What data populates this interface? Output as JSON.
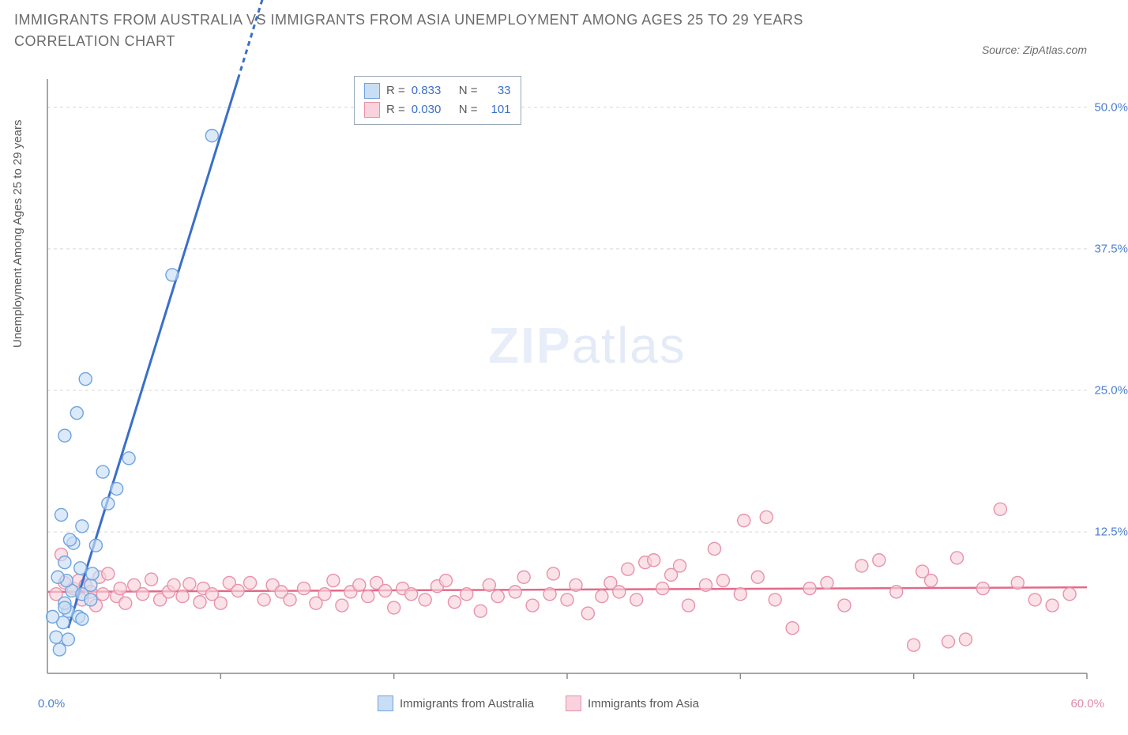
{
  "title": "IMMIGRANTS FROM AUSTRALIA VS IMMIGRANTS FROM ASIA UNEMPLOYMENT AMONG AGES 25 TO 29 YEARS CORRELATION CHART",
  "source": "Source: ZipAtlas.com",
  "y_axis_label": "Unemployment Among Ages 25 to 29 years",
  "watermark": {
    "bold": "ZIP",
    "light": "atlas"
  },
  "chart": {
    "type": "scatter",
    "background_color": "#ffffff",
    "grid_color": "#d7d7d7",
    "axis_color": "#8a8a8a",
    "tick_font_size": 15,
    "y_tick_color": "#4b7fd1",
    "x_left_tick_color": "#4b7fd1",
    "x_right_tick_color": "#e28aa3",
    "xlim": [
      0,
      60
    ],
    "ylim": [
      0,
      52.5
    ],
    "y_ticks": [
      12.5,
      25.0,
      37.5,
      50.0
    ],
    "y_tick_labels": [
      "12.5%",
      "25.0%",
      "37.5%",
      "50.0%"
    ],
    "x_major_ticks": [
      0,
      10,
      20,
      30,
      40,
      50,
      60
    ],
    "x_left_label": "0.0%",
    "x_right_label": "60.0%",
    "marker_radius": 8,
    "marker_stroke_width": 1.4,
    "trend_line_width_a": 3,
    "trend_line_width_b": 2.5,
    "series": [
      {
        "name": "Immigrants from Australia",
        "fill": "#c9ddf4",
        "stroke": "#6ea3df",
        "line_color": "#3a6fc9",
        "R": "0.833",
        "N": "33",
        "trend": {
          "x1": 1.2,
          "y1": 4.0,
          "x2": 11.0,
          "y2": 52.5,
          "dashed_ext_to": [
            12.5,
            60
          ]
        },
        "points": [
          [
            0.5,
            3.2
          ],
          [
            0.7,
            2.1
          ],
          [
            1.2,
            3.0
          ],
          [
            0.9,
            4.5
          ],
          [
            1.2,
            5.5
          ],
          [
            1.8,
            5.0
          ],
          [
            1.0,
            6.2
          ],
          [
            1.4,
            7.3
          ],
          [
            2.0,
            7.0
          ],
          [
            2.5,
            7.8
          ],
          [
            1.1,
            8.2
          ],
          [
            0.6,
            8.5
          ],
          [
            1.0,
            9.8
          ],
          [
            1.5,
            11.5
          ],
          [
            1.3,
            11.8
          ],
          [
            2.8,
            11.3
          ],
          [
            2.0,
            13.0
          ],
          [
            0.8,
            14.0
          ],
          [
            3.5,
            15.0
          ],
          [
            4.0,
            16.3
          ],
          [
            3.2,
            17.8
          ],
          [
            4.7,
            19.0
          ],
          [
            1.0,
            21.0
          ],
          [
            1.7,
            23.0
          ],
          [
            2.2,
            26.0
          ],
          [
            7.2,
            35.2
          ],
          [
            9.5,
            47.5
          ],
          [
            0.3,
            5.0
          ],
          [
            2.0,
            4.8
          ],
          [
            1.0,
            5.8
          ],
          [
            2.5,
            6.5
          ],
          [
            2.6,
            8.8
          ],
          [
            1.9,
            9.3
          ]
        ]
      },
      {
        "name": "Immigrants from Asia",
        "fill": "#f8d2dc",
        "stroke": "#e892a9",
        "line_color": "#e26a8c",
        "R": "0.030",
        "N": "101",
        "trend": {
          "x1": 0,
          "y1": 7.2,
          "x2": 60,
          "y2": 7.6
        },
        "points": [
          [
            0.8,
            10.5
          ],
          [
            1.0,
            8.0
          ],
          [
            1.5,
            7.5
          ],
          [
            1.8,
            8.2
          ],
          [
            2.0,
            6.5
          ],
          [
            2.2,
            7.8
          ],
          [
            2.5,
            7.2
          ],
          [
            2.8,
            6.0
          ],
          [
            3.0,
            8.5
          ],
          [
            3.2,
            7.0
          ],
          [
            3.5,
            8.8
          ],
          [
            4.0,
            6.8
          ],
          [
            4.2,
            7.5
          ],
          [
            4.5,
            6.2
          ],
          [
            5.0,
            7.8
          ],
          [
            5.5,
            7.0
          ],
          [
            6.0,
            8.3
          ],
          [
            6.5,
            6.5
          ],
          [
            7.0,
            7.2
          ],
          [
            7.3,
            7.8
          ],
          [
            7.8,
            6.8
          ],
          [
            8.2,
            7.9
          ],
          [
            8.8,
            6.3
          ],
          [
            9.0,
            7.5
          ],
          [
            9.5,
            7.0
          ],
          [
            10.0,
            6.2
          ],
          [
            10.5,
            8.0
          ],
          [
            11.0,
            7.3
          ],
          [
            11.7,
            8.0
          ],
          [
            12.5,
            6.5
          ],
          [
            13.0,
            7.8
          ],
          [
            13.5,
            7.2
          ],
          [
            14.0,
            6.5
          ],
          [
            14.8,
            7.5
          ],
          [
            15.5,
            6.2
          ],
          [
            16.0,
            7.0
          ],
          [
            16.5,
            8.2
          ],
          [
            17.0,
            6.0
          ],
          [
            17.5,
            7.2
          ],
          [
            18.0,
            7.8
          ],
          [
            18.5,
            6.8
          ],
          [
            19.0,
            8.0
          ],
          [
            19.5,
            7.3
          ],
          [
            20.0,
            5.8
          ],
          [
            20.5,
            7.5
          ],
          [
            21.0,
            7.0
          ],
          [
            21.8,
            6.5
          ],
          [
            22.5,
            7.7
          ],
          [
            23.0,
            8.2
          ],
          [
            23.5,
            6.3
          ],
          [
            24.2,
            7.0
          ],
          [
            25.0,
            5.5
          ],
          [
            25.5,
            7.8
          ],
          [
            26.0,
            6.8
          ],
          [
            27.0,
            7.2
          ],
          [
            27.5,
            8.5
          ],
          [
            28.0,
            6.0
          ],
          [
            29.0,
            7.0
          ],
          [
            29.2,
            8.8
          ],
          [
            30.0,
            6.5
          ],
          [
            30.5,
            7.8
          ],
          [
            31.2,
            5.3
          ],
          [
            32.0,
            6.8
          ],
          [
            32.5,
            8.0
          ],
          [
            33.0,
            7.2
          ],
          [
            33.5,
            9.2
          ],
          [
            34.0,
            6.5
          ],
          [
            34.5,
            9.8
          ],
          [
            35.0,
            10.0
          ],
          [
            35.5,
            7.5
          ],
          [
            36.0,
            8.7
          ],
          [
            36.5,
            9.5
          ],
          [
            37.0,
            6.0
          ],
          [
            38.0,
            7.8
          ],
          [
            38.5,
            11.0
          ],
          [
            39.0,
            8.2
          ],
          [
            40.0,
            7.0
          ],
          [
            40.2,
            13.5
          ],
          [
            41.0,
            8.5
          ],
          [
            41.5,
            13.8
          ],
          [
            42.0,
            6.5
          ],
          [
            43.0,
            4.0
          ],
          [
            44.0,
            7.5
          ],
          [
            45.0,
            8.0
          ],
          [
            46.0,
            6.0
          ],
          [
            47.0,
            9.5
          ],
          [
            48.0,
            10.0
          ],
          [
            49.0,
            7.2
          ],
          [
            50.0,
            2.5
          ],
          [
            50.5,
            9.0
          ],
          [
            51.0,
            8.2
          ],
          [
            52.0,
            2.8
          ],
          [
            52.5,
            10.2
          ],
          [
            53.0,
            3.0
          ],
          [
            54.0,
            7.5
          ],
          [
            55.0,
            14.5
          ],
          [
            56.0,
            8.0
          ],
          [
            57.0,
            6.5
          ],
          [
            58.0,
            6.0
          ],
          [
            59.0,
            7.0
          ],
          [
            0.5,
            7.0
          ]
        ]
      }
    ]
  },
  "legend_top": {
    "r_label": "R =",
    "n_label": "N =",
    "r_color": "#3a6fc9",
    "text_color": "#5a5a5a",
    "border_color": "#9aa7b8"
  },
  "legend_bottom": {
    "label_a": "Immigrants from Australia",
    "label_b": "Immigrants from Asia"
  }
}
